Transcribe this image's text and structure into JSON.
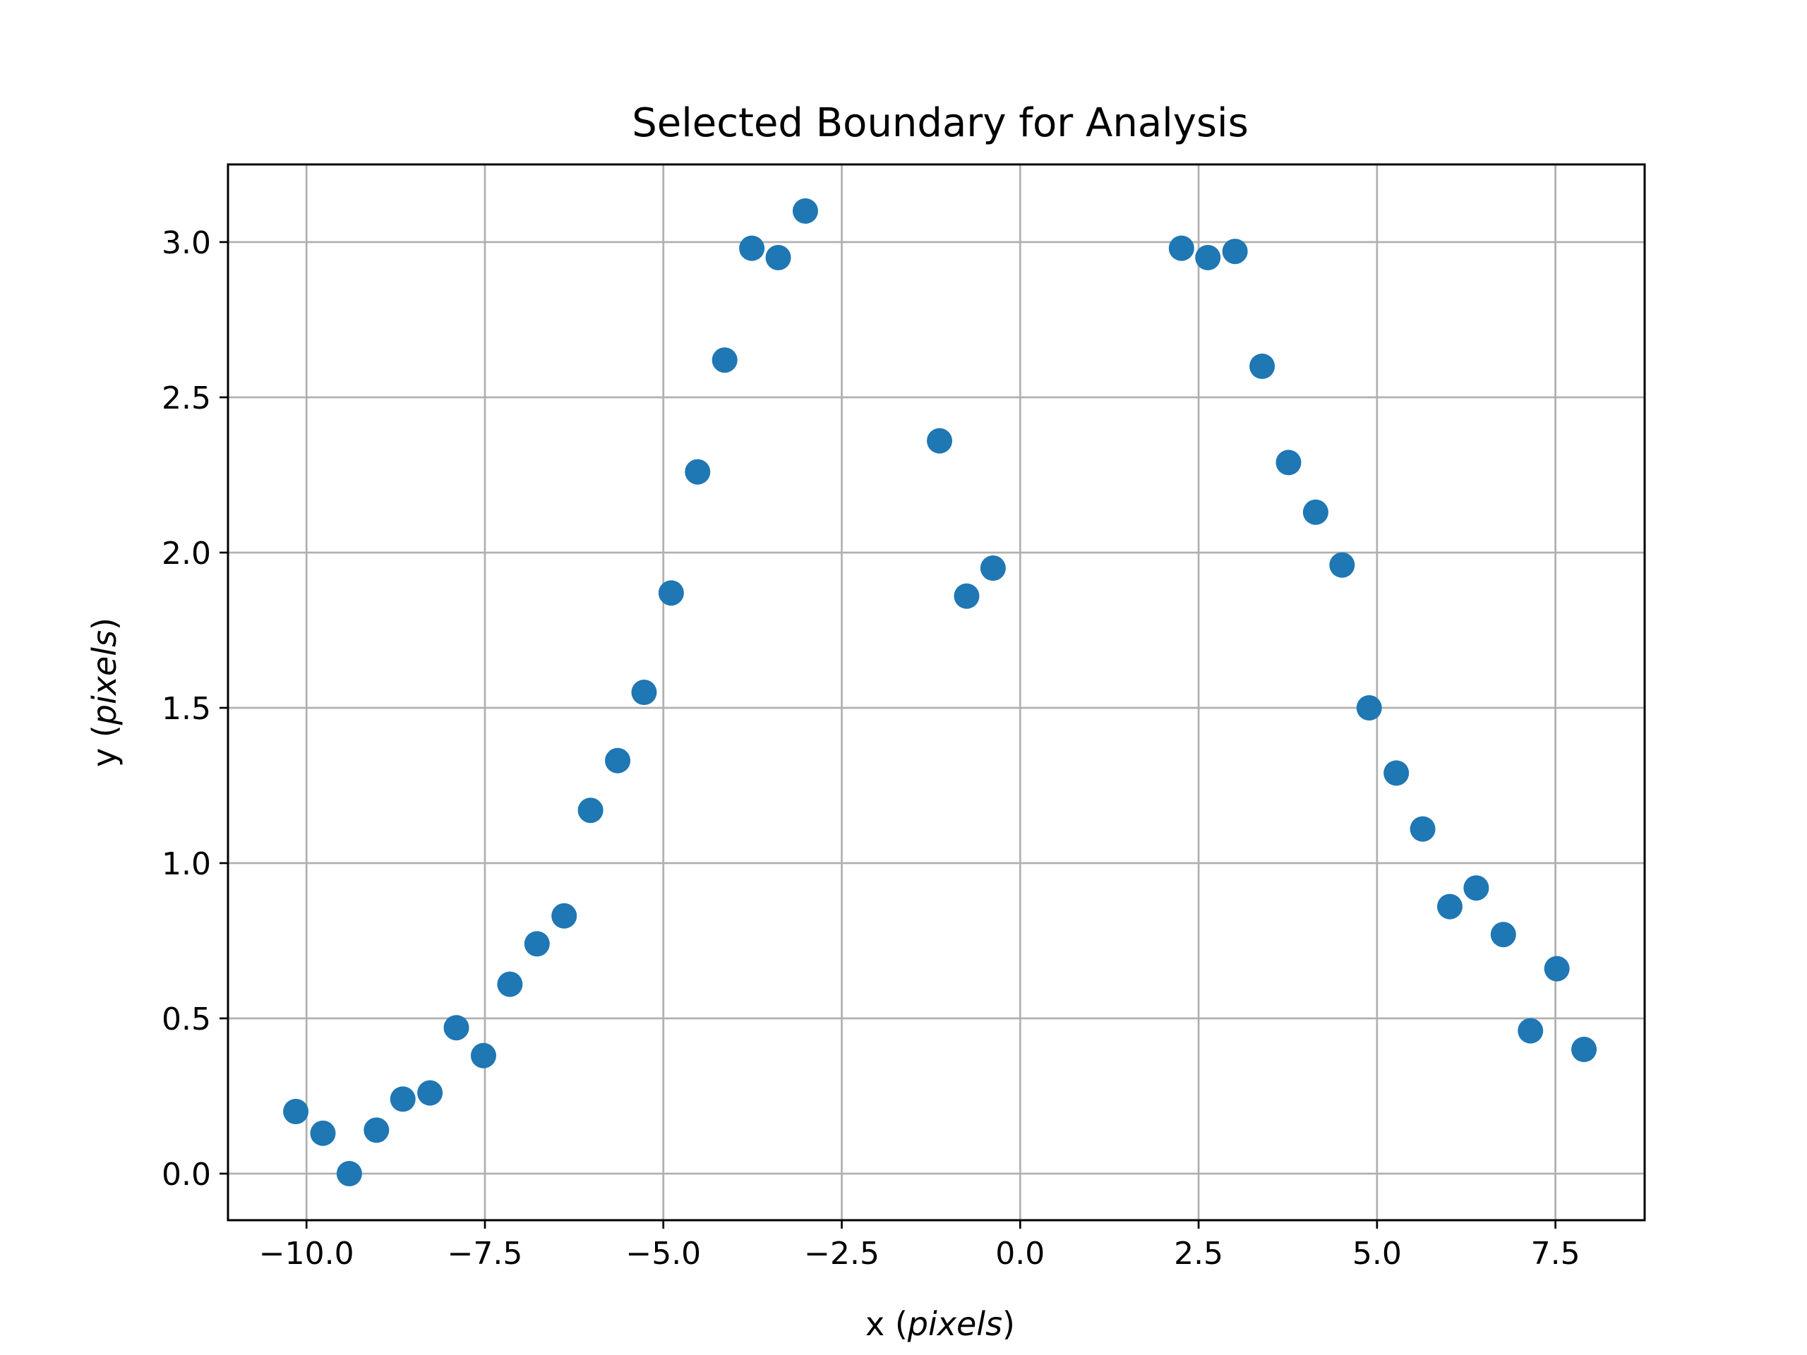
{
  "chart_data": {
    "type": "scatter",
    "title": "Selected Boundary for Analysis",
    "xlabel_prefix": "x (",
    "xlabel_unit": "pixels",
    "xlabel_suffix": ")",
    "ylabel_prefix": "y (",
    "ylabel_unit": "pixels",
    "ylabel_suffix": ")",
    "xlim": [
      -11.1,
      8.75
    ],
    "ylim": [
      -0.15,
      3.25
    ],
    "xticks": [
      -10.0,
      -7.5,
      -5.0,
      -2.5,
      0.0,
      2.5,
      5.0,
      7.5
    ],
    "xtick_labels": [
      "−10.0",
      "−7.5",
      "−5.0",
      "−2.5",
      "0.0",
      "2.5",
      "5.0",
      "7.5"
    ],
    "yticks": [
      0.0,
      0.5,
      1.0,
      1.5,
      2.0,
      2.5,
      3.0
    ],
    "ytick_labels": [
      "0.0",
      "0.5",
      "1.0",
      "1.5",
      "2.0",
      "2.5",
      "3.0"
    ],
    "grid": true,
    "marker_color": "#1f77b4",
    "points": [
      {
        "x": -10.15,
        "y": 0.2
      },
      {
        "x": -9.77,
        "y": 0.13
      },
      {
        "x": -9.4,
        "y": 0.0
      },
      {
        "x": -9.02,
        "y": 0.14
      },
      {
        "x": -8.65,
        "y": 0.24
      },
      {
        "x": -8.27,
        "y": 0.26
      },
      {
        "x": -7.9,
        "y": 0.47
      },
      {
        "x": -7.52,
        "y": 0.38
      },
      {
        "x": -7.15,
        "y": 0.61
      },
      {
        "x": -6.77,
        "y": 0.74
      },
      {
        "x": -6.39,
        "y": 0.83
      },
      {
        "x": -6.02,
        "y": 1.17
      },
      {
        "x": -5.64,
        "y": 1.33
      },
      {
        "x": -5.27,
        "y": 1.55
      },
      {
        "x": -4.89,
        "y": 1.87
      },
      {
        "x": -4.52,
        "y": 2.26
      },
      {
        "x": -4.14,
        "y": 2.62
      },
      {
        "x": -3.76,
        "y": 2.98
      },
      {
        "x": -3.39,
        "y": 2.95
      },
      {
        "x": -3.01,
        "y": 3.1
      },
      {
        "x": -1.13,
        "y": 2.36
      },
      {
        "x": -0.75,
        "y": 1.86
      },
      {
        "x": -0.38,
        "y": 1.95
      },
      {
        "x": 2.26,
        "y": 2.98
      },
      {
        "x": 2.63,
        "y": 2.95
      },
      {
        "x": 3.01,
        "y": 2.97
      },
      {
        "x": 3.39,
        "y": 2.6
      },
      {
        "x": 3.76,
        "y": 2.29
      },
      {
        "x": 4.14,
        "y": 2.13
      },
      {
        "x": 4.51,
        "y": 1.96
      },
      {
        "x": 4.89,
        "y": 1.5
      },
      {
        "x": 5.27,
        "y": 1.29
      },
      {
        "x": 5.64,
        "y": 1.11
      },
      {
        "x": 6.02,
        "y": 0.86
      },
      {
        "x": 6.39,
        "y": 0.92
      },
      {
        "x": 6.77,
        "y": 0.77
      },
      {
        "x": 7.15,
        "y": 0.46
      },
      {
        "x": 7.52,
        "y": 0.66
      },
      {
        "x": 7.9,
        "y": 0.4
      }
    ]
  }
}
